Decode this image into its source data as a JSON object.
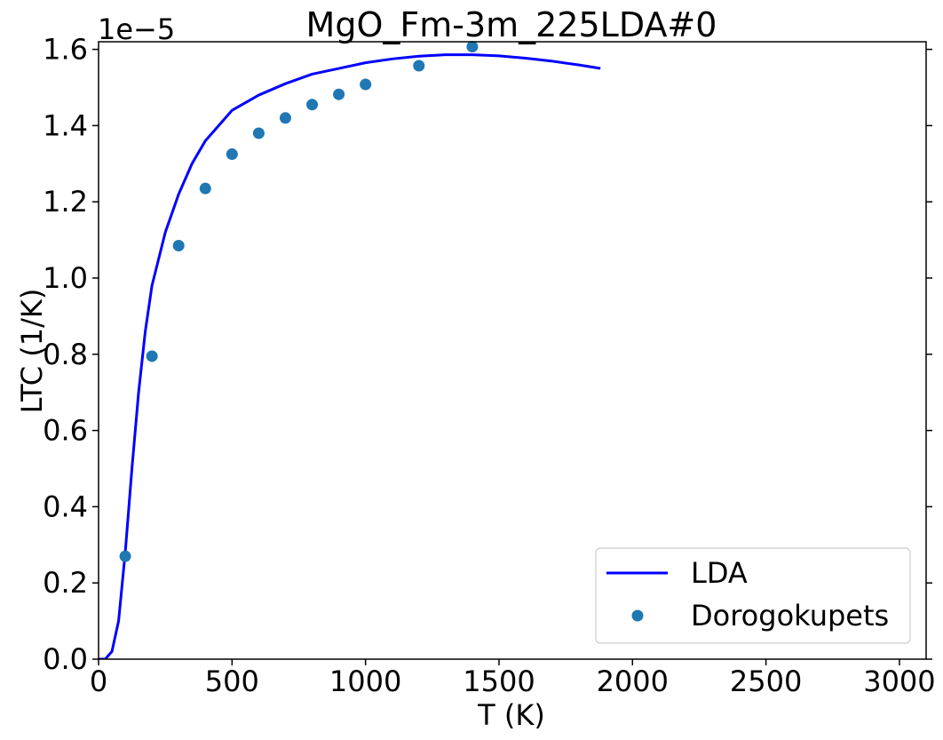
{
  "chart_data": {
    "type": "line",
    "title": "MgO_Fm-3m_225LDA#0",
    "xlabel": "T (K)",
    "ylabel": "LTC (1/K)",
    "offset_text": "1e−5",
    "xlim": [
      0,
      3100
    ],
    "ylim": [
      0,
      1.62
    ],
    "y_scale": "1e-5",
    "x_ticks": [
      0,
      500,
      1000,
      1500,
      2000,
      2500,
      3000
    ],
    "x_tick_labels": [
      "0",
      "500",
      "1000",
      "1500",
      "2000",
      "2500",
      "3000"
    ],
    "y_ticks": [
      0.0,
      0.2,
      0.4,
      0.6,
      0.8,
      1.0,
      1.2,
      1.4,
      1.6
    ],
    "y_tick_labels": [
      "0.0",
      "0.2",
      "0.4",
      "0.6",
      "0.8",
      "1.0",
      "1.2",
      "1.4",
      "1.6"
    ],
    "grid": false,
    "legend_position": "lower-right",
    "series": [
      {
        "name": "LDA",
        "kind": "line",
        "color": "#0000ff",
        "x": [
          0,
          25,
          50,
          75,
          100,
          125,
          150,
          175,
          200,
          250,
          300,
          350,
          400,
          450,
          500,
          600,
          700,
          800,
          900,
          1000,
          1100,
          1200,
          1300,
          1400,
          1500,
          1600,
          1700,
          1800,
          1880
        ],
        "y": [
          0.0,
          0.0,
          0.02,
          0.1,
          0.28,
          0.5,
          0.7,
          0.86,
          0.98,
          1.12,
          1.22,
          1.3,
          1.36,
          1.4,
          1.44,
          1.48,
          1.51,
          1.535,
          1.55,
          1.565,
          1.575,
          1.582,
          1.586,
          1.586,
          1.583,
          1.577,
          1.569,
          1.559,
          1.55
        ]
      },
      {
        "name": "Dorogokupets",
        "kind": "scatter",
        "color": "#1f77b4",
        "x": [
          100,
          200,
          300,
          400,
          500,
          600,
          700,
          800,
          900,
          1000,
          1200,
          1400
        ],
        "y": [
          0.27,
          0.795,
          1.085,
          1.235,
          1.325,
          1.38,
          1.42,
          1.455,
          1.482,
          1.508,
          1.557,
          1.607
        ]
      }
    ]
  }
}
